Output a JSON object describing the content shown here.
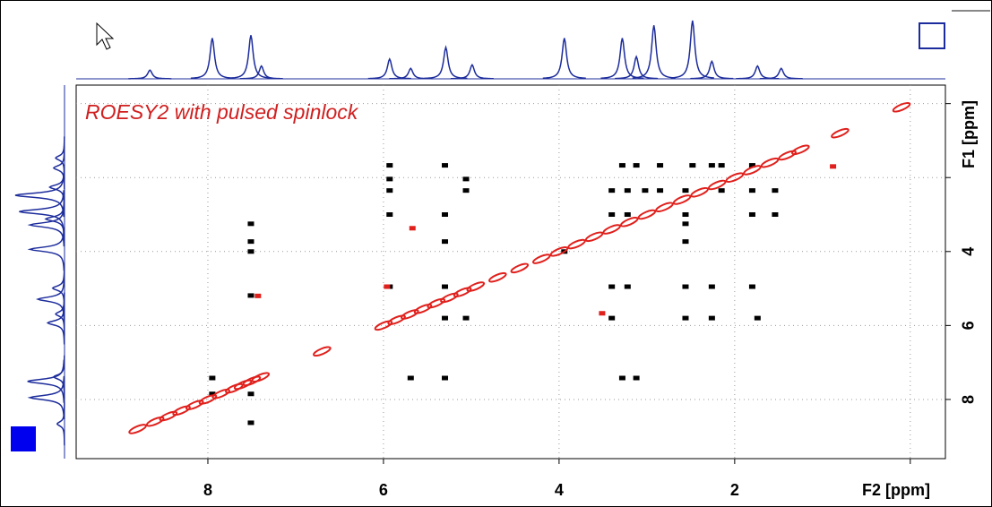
{
  "chart_data": {
    "type": "contour",
    "title": "ROESY2 with  pulsed spinlock",
    "xlabel": "F2 [ppm]",
    "ylabel": "F1 [ppm]",
    "xlim": [
      9.5,
      -0.4
    ],
    "ylim": [
      -0.5,
      9.6
    ],
    "xticks": [
      8,
      6,
      4,
      2,
      {
        "value": 0,
        "label": null
      }
    ],
    "yticks": [
      {
        "value": 0,
        "label": null
      },
      {
        "value": 2,
        "label": null
      },
      4,
      6,
      8
    ],
    "grid": true,
    "projection": {
      "color": "#1c2c9c",
      "x": [
        8.66,
        7.95,
        7.51,
        7.39,
        5.93,
        5.69,
        5.29,
        4.99,
        3.94,
        3.28,
        3.12,
        2.92,
        2.48,
        2.26,
        1.74,
        1.47
      ],
      "values": [
        15,
        70,
        75,
        22,
        34,
        18,
        54,
        24,
        70,
        70,
        38,
        92,
        100,
        30,
        22,
        18
      ]
    },
    "series": [
      {
        "color": "#000000",
        "x": [
          5.93,
          5.3,
          3.28,
          3.12,
          2.85,
          2.48,
          2.26,
          2.15,
          1.8,
          5.93,
          5.06,
          5.93,
          5.06,
          3.4,
          3.22,
          3.02,
          2.85,
          2.56,
          2.15,
          1.8,
          1.54,
          5.93,
          5.3,
          3.4,
          3.22,
          2.56,
          1.8,
          1.54,
          7.51,
          2.56,
          7.51,
          5.3,
          2.56,
          7.51,
          3.94,
          5.93,
          5.3,
          3.4,
          3.22,
          2.56,
          2.26,
          1.8,
          7.51,
          5.3,
          5.06,
          3.4,
          2.56,
          2.26,
          1.74,
          7.95,
          5.69,
          5.3,
          3.28,
          3.12,
          7.95,
          7.51,
          7.51
        ],
        "y": [
          1.67,
          1.67,
          1.67,
          1.67,
          1.67,
          1.67,
          1.67,
          1.67,
          1.67,
          2.04,
          2.04,
          2.35,
          2.35,
          2.35,
          2.35,
          2.35,
          2.35,
          2.35,
          2.35,
          2.35,
          2.35,
          3.0,
          3.0,
          3.0,
          3.0,
          3.0,
          3.0,
          3.0,
          3.25,
          3.25,
          3.73,
          3.73,
          3.73,
          4.0,
          4.0,
          4.95,
          4.95,
          4.95,
          4.95,
          4.95,
          4.95,
          4.95,
          5.19,
          5.8,
          5.8,
          5.8,
          5.8,
          5.8,
          5.8,
          7.42,
          7.42,
          7.42,
          7.42,
          7.42,
          7.85,
          7.85,
          8.63
        ]
      },
      {
        "color": "#e0201c",
        "x": [
          8.8,
          8.6,
          8.45,
          8.3,
          8.15,
          8.0,
          7.85,
          7.7,
          7.6,
          7.5,
          7.4,
          6.7,
          6.0,
          5.85,
          5.7,
          5.55,
          5.4,
          5.25,
          5.1,
          4.95,
          4.7,
          4.45,
          4.2,
          4.0,
          3.8,
          3.6,
          3.4,
          3.2,
          3.0,
          2.8,
          2.6,
          2.4,
          2.2,
          2.0,
          1.8,
          1.6,
          1.4,
          1.25,
          0.8,
          0.1,
          0.88,
          5.67,
          3.51,
          7.43,
          5.96
        ],
        "y": [
          8.8,
          8.6,
          8.45,
          8.3,
          8.15,
          8.0,
          7.85,
          7.7,
          7.6,
          7.5,
          7.4,
          6.7,
          6.0,
          5.85,
          5.7,
          5.55,
          5.4,
          5.25,
          5.1,
          4.95,
          4.7,
          4.45,
          4.2,
          4.0,
          3.8,
          3.6,
          3.4,
          3.2,
          3.0,
          2.8,
          2.6,
          2.4,
          2.2,
          2.0,
          1.8,
          1.6,
          1.4,
          1.25,
          0.8,
          0.1,
          1.7,
          3.37,
          5.67,
          5.2,
          4.95
        ]
      }
    ]
  }
}
